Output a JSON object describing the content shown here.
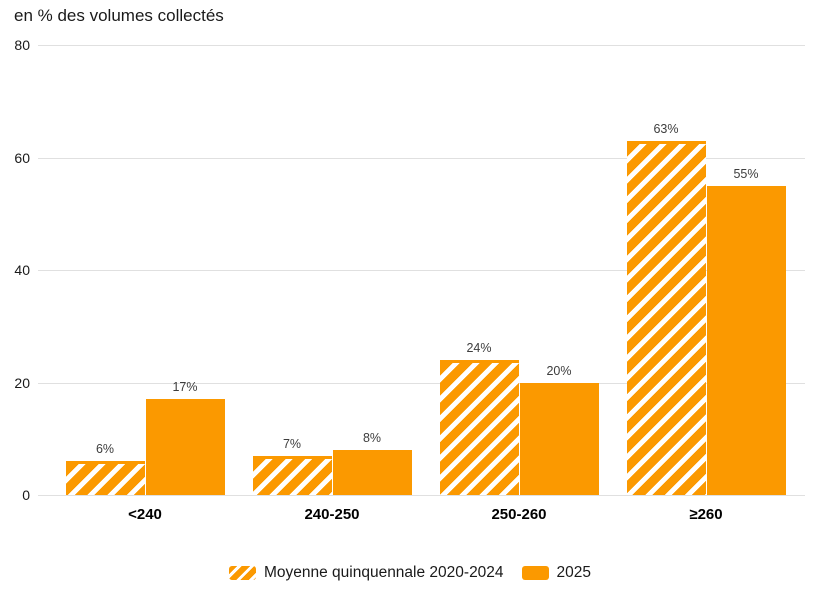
{
  "chart_data": {
    "type": "bar",
    "title": "en % des volumes collectés",
    "categories": [
      "<240",
      "240-250",
      "250-260",
      "≥260"
    ],
    "series": [
      {
        "name": "Moyenne quinquennale 2020-2024",
        "style": "hatched",
        "values": [
          6,
          7,
          24,
          63
        ]
      },
      {
        "name": "2025",
        "style": "solid",
        "values": [
          17,
          8,
          20,
          55
        ]
      }
    ],
    "value_suffix": "%",
    "yticks": [
      0,
      20,
      40,
      60,
      80
    ],
    "ylim": [
      0,
      80
    ],
    "grid": true,
    "legend_position": "bottom"
  },
  "colors": {
    "bar_orange": "#FB9900",
    "gridline": "#E0E0E0",
    "title_text": "#1A1A1A",
    "value_label_text": "#3D3D3D"
  }
}
